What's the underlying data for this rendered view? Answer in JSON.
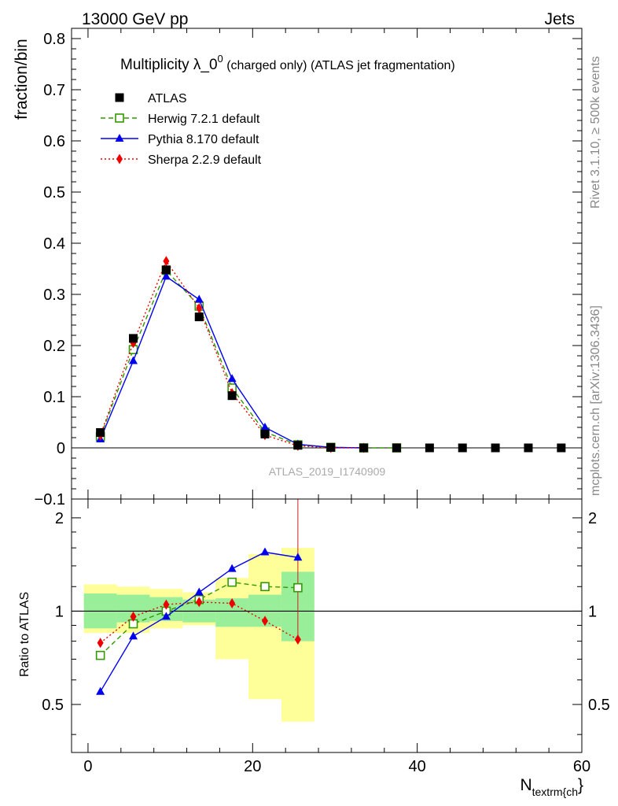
{
  "header": {
    "left": "13000 GeV pp",
    "right": "Jets"
  },
  "side_labels": {
    "top": "Rivet 3.1.10, ≥ 500k events",
    "bottom": "mcplots.cern.ch [arXiv:1306.3436]"
  },
  "watermark": "ATLAS_2019_I1740909",
  "chart_data": [
    {
      "type": "scatter",
      "title_main": "Multiplicity λ_0",
      "title_sup": "0",
      "title_rest": " (charged only) (ATLAS jet fragmentation)",
      "ylabel": "fraction/bin",
      "xlim": [
        -2,
        60
      ],
      "ylim": [
        -0.1,
        0.82
      ],
      "yticks": [
        -0.1,
        0,
        0.1,
        0.2,
        0.3,
        0.4,
        0.5,
        0.6,
        0.7,
        0.8
      ],
      "ytick_labels": [
        "−0.1",
        "0",
        "0.1",
        "0.2",
        "0.3",
        "0.4",
        "0.5",
        "0.6",
        "0.7",
        "0.8"
      ],
      "legend_position": "top-left",
      "series": [
        {
          "name": "ATLAS",
          "color": "#000000",
          "marker": "square",
          "line": "none",
          "x": [
            1.5,
            5.5,
            9.5,
            13.5,
            17.5,
            21.5,
            25.5,
            29.5,
            33.5,
            37.5,
            41.5,
            45.5,
            49.5,
            53.5,
            57.5
          ],
          "y": [
            0.03,
            0.214,
            0.348,
            0.256,
            0.102,
            0.027,
            0.005,
            0.001,
            0.0,
            0.0,
            0.0,
            0.0,
            0.0,
            0.0,
            0.0
          ]
        },
        {
          "name": "Herwig 7.2.1 default",
          "color": "#339900",
          "marker": "open-square",
          "line": "dashed",
          "x": [
            1.5,
            5.5,
            9.5,
            13.5,
            17.5,
            21.5,
            25.5,
            29.5,
            33.5,
            37.5
          ],
          "y": [
            0.022,
            0.192,
            0.347,
            0.277,
            0.117,
            0.031,
            0.006,
            0.001,
            0.0,
            0.0
          ]
        },
        {
          "name": "Pythia 8.170 default",
          "color": "#0000ee",
          "marker": "triangle",
          "line": "solid",
          "x": [
            1.5,
            5.5,
            9.5,
            13.5,
            17.5,
            21.5,
            25.5,
            29.5,
            33.5
          ],
          "y": [
            0.017,
            0.17,
            0.335,
            0.29,
            0.135,
            0.04,
            0.007,
            0.001,
            0.0
          ]
        },
        {
          "name": "Sherpa 2.2.9 default",
          "color": "#ee0000",
          "marker": "diamond",
          "line": "dotted",
          "x": [
            1.5,
            5.5,
            9.5,
            13.5,
            17.5,
            21.5,
            25.5,
            29.5,
            33.5
          ],
          "y": [
            0.024,
            0.205,
            0.365,
            0.273,
            0.107,
            0.025,
            0.004,
            0.0,
            0.0
          ]
        }
      ]
    },
    {
      "type": "scatter",
      "ylabel": "Ratio to ATLAS",
      "xlabel_main": "N",
      "xlabel_sub": "textrm{ch",
      "xlabel_tail": "}",
      "xlim": [
        -2,
        60
      ],
      "ylim": [
        0.35,
        2.3
      ],
      "log_y": true,
      "yticks": [
        0.5,
        1,
        2
      ],
      "ytick_labels": [
        "0.5",
        "1",
        "2"
      ],
      "xticks": [
        0,
        20,
        40,
        60
      ],
      "xtick_labels": [
        "0",
        "20",
        "40",
        "60"
      ],
      "reference_line": 1,
      "bands": {
        "x_edges": [
          -0.5,
          3.5,
          7.5,
          11.5,
          15.5,
          19.5,
          23.5,
          27.5
        ],
        "inner_low": [
          0.88,
          0.92,
          0.93,
          0.92,
          0.89,
          0.89,
          0.8,
          0.77
        ],
        "inner_high": [
          1.14,
          1.13,
          1.11,
          1.09,
          1.1,
          1.13,
          1.34,
          1.4
        ],
        "outer_low": [
          0.85,
          0.85,
          0.88,
          0.9,
          0.7,
          0.52,
          0.44,
          0.44
        ],
        "outer_high": [
          1.22,
          1.2,
          1.18,
          1.15,
          1.28,
          1.53,
          1.6,
          1.62
        ],
        "inner_color": "#99ee99",
        "outer_color": "#ffff99"
      },
      "series": [
        {
          "name": "Herwig 7.2.1 default",
          "color": "#339900",
          "x": [
            1.5,
            5.5,
            9.5,
            13.5,
            17.5,
            21.5,
            25.5
          ],
          "y": [
            0.72,
            0.91,
            1.0,
            1.09,
            1.24,
            1.2,
            1.19
          ]
        },
        {
          "name": "Pythia 8.170 default",
          "color": "#0000ee",
          "x": [
            1.5,
            5.5,
            9.5,
            13.5,
            17.5,
            21.5,
            25.5
          ],
          "y": [
            0.55,
            0.83,
            0.96,
            1.15,
            1.37,
            1.55,
            1.49
          ]
        },
        {
          "name": "Sherpa 2.2.9 default",
          "color": "#ee0000",
          "x": [
            1.5,
            5.5,
            9.5,
            13.5,
            17.5,
            21.5,
            25.5
          ],
          "y": [
            0.79,
            0.96,
            1.05,
            1.07,
            1.06,
            0.93,
            0.81
          ]
        }
      ]
    }
  ]
}
